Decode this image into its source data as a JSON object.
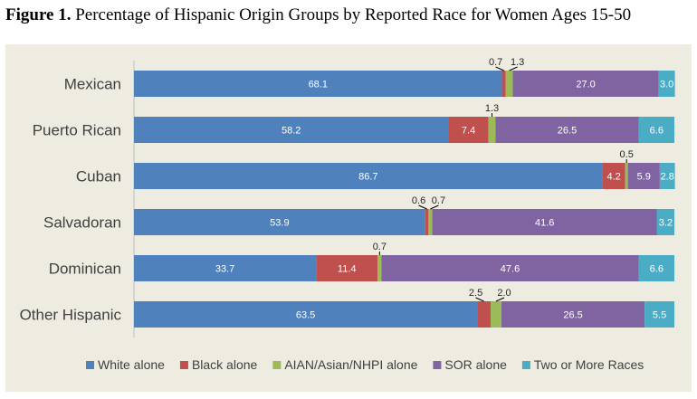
{
  "title": {
    "figure": "Figure 1.",
    "text": "Percentage of Hispanic Origin Groups by Reported Race for Women Ages 15-50"
  },
  "chart_data": {
    "type": "bar",
    "orientation": "horizontal",
    "stacked": true,
    "categories": [
      "Mexican",
      "Puerto Rican",
      "Cuban",
      "Salvadoran",
      "Dominican",
      "Other Hispanic"
    ],
    "series": [
      {
        "name": "White alone",
        "color": "#4f81bd",
        "values": [
          68.1,
          58.2,
          86.7,
          53.9,
          33.7,
          63.5
        ]
      },
      {
        "name": "Black alone",
        "color": "#c0504d",
        "values": [
          0.7,
          7.4,
          4.2,
          0.6,
          11.4,
          2.5
        ]
      },
      {
        "name": "AIAN/Asian/NHPI alone",
        "color": "#9bbb59",
        "values": [
          1.3,
          1.3,
          0.5,
          0.7,
          0.7,
          2.0
        ]
      },
      {
        "name": "SOR alone",
        "color": "#8064a2",
        "values": [
          27.0,
          26.5,
          5.9,
          41.6,
          47.6,
          26.5
        ]
      },
      {
        "name": "Two or More Races",
        "color": "#4bacc6",
        "values": [
          3.0,
          6.6,
          2.8,
          3.2,
          6.6,
          5.5
        ]
      }
    ],
    "xlim": [
      0,
      100
    ],
    "legend_position": "bottom"
  }
}
